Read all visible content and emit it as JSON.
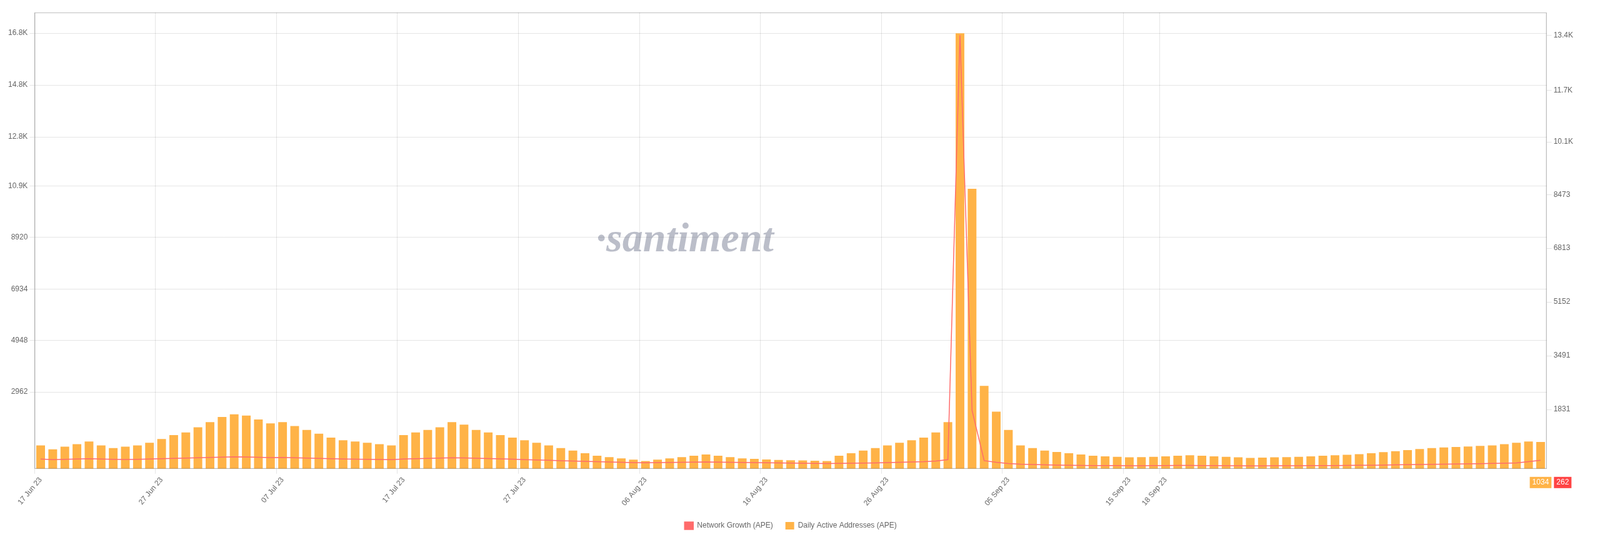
{
  "chart_data": {
    "type": "bar",
    "categories": [
      "17 Jun 23",
      null,
      null,
      null,
      null,
      null,
      null,
      null,
      null,
      null,
      "27 Jun 23",
      null,
      null,
      null,
      null,
      null,
      null,
      null,
      null,
      null,
      "07 Jul 23",
      null,
      null,
      null,
      null,
      null,
      null,
      null,
      null,
      null,
      "17 Jul 23",
      null,
      null,
      null,
      null,
      null,
      null,
      null,
      null,
      null,
      "27 Jul 23",
      null,
      null,
      null,
      null,
      null,
      null,
      null,
      null,
      null,
      "06 Aug 23",
      null,
      null,
      null,
      null,
      null,
      null,
      null,
      null,
      null,
      "16 Aug 23",
      null,
      null,
      null,
      null,
      null,
      null,
      null,
      null,
      null,
      "26 Aug 23",
      null,
      null,
      null,
      null,
      null,
      null,
      null,
      null,
      null,
      "05 Sep 23",
      null,
      null,
      null,
      null,
      null,
      null,
      null,
      null,
      null,
      "15 Sep 23",
      null,
      null,
      "18 Sep 23",
      null,
      null,
      null,
      null,
      null,
      null,
      null,
      null,
      null,
      null,
      null,
      null,
      null,
      null,
      null,
      null,
      null,
      null,
      null,
      null,
      null,
      null,
      null,
      null,
      null,
      null,
      null,
      null,
      null,
      null,
      null
    ],
    "series": [
      {
        "name": "Daily Active Addresses (APE)",
        "type": "bar",
        "color": "#FFB347",
        "values": [
          900,
          750,
          850,
          950,
          1050,
          900,
          800,
          850,
          900,
          1000,
          1150,
          1300,
          1400,
          1600,
          1800,
          2000,
          2100,
          2050,
          1900,
          1750,
          1800,
          1650,
          1500,
          1350,
          1200,
          1100,
          1050,
          1000,
          950,
          900,
          1300,
          1400,
          1500,
          1600,
          1800,
          1700,
          1500,
          1400,
          1300,
          1200,
          1100,
          1000,
          900,
          800,
          700,
          600,
          500,
          450,
          400,
          350,
          300,
          350,
          400,
          450,
          500,
          550,
          500,
          450,
          400,
          380,
          360,
          340,
          330,
          320,
          310,
          300,
          500,
          600,
          700,
          800,
          900,
          1000,
          1100,
          1200,
          1400,
          1800,
          16800,
          10800,
          3200,
          2200,
          1500,
          900,
          800,
          700,
          650,
          600,
          550,
          500,
          480,
          460,
          440,
          450,
          460,
          480,
          500,
          520,
          500,
          480,
          460,
          440,
          420,
          430,
          440,
          450,
          460,
          480,
          500,
          520,
          540,
          560,
          600,
          640,
          680,
          720,
          760,
          800,
          820,
          840,
          860,
          880,
          900,
          950,
          1000,
          1050,
          1034
        ]
      },
      {
        "name": "Network Growth (APE)",
        "type": "line",
        "color": "#FF6B6B",
        "axis": "y2",
        "values": [
          300,
          280,
          290,
          300,
          310,
          300,
          290,
          285,
          290,
          300,
          310,
          320,
          330,
          340,
          350,
          360,
          370,
          365,
          355,
          345,
          350,
          340,
          330,
          320,
          310,
          300,
          295,
          290,
          285,
          280,
          300,
          310,
          320,
          330,
          340,
          335,
          325,
          315,
          305,
          295,
          280,
          270,
          260,
          250,
          240,
          230,
          220,
          210,
          200,
          190,
          185,
          190,
          195,
          200,
          205,
          210,
          205,
          200,
          195,
          190,
          185,
          180,
          175,
          170,
          165,
          160,
          165,
          170,
          175,
          180,
          190,
          200,
          210,
          220,
          240,
          280,
          13400,
          1800,
          250,
          200,
          160,
          140,
          130,
          120,
          115,
          110,
          105,
          100,
          98,
          96,
          94,
          95,
          97,
          99,
          101,
          103,
          100,
          97,
          94,
          91,
          88,
          89,
          91,
          92,
          94,
          96,
          98,
          100,
          103,
          106,
          110,
          115,
          120,
          126,
          132,
          138,
          142,
          147,
          152,
          158,
          165,
          172,
          180,
          220,
          262
        ]
      }
    ],
    "ylim": [
      0,
      17600
    ],
    "yticks": [
      2962,
      4948,
      6934,
      8920,
      {
        "value": 10900,
        "label": "10.9K"
      },
      {
        "value": 12800,
        "label": "12.8K"
      },
      {
        "value": 14800,
        "label": "14.8K"
      },
      {
        "value": 16800,
        "label": "16.8K"
      }
    ],
    "y2lim": [
      0,
      14100
    ],
    "y2ticks": [
      1831,
      3491,
      5152,
      6813,
      8473,
      {
        "value": 10100,
        "label": "10.1K"
      },
      {
        "value": 11700,
        "label": "11.7K"
      },
      {
        "value": 13400,
        "label": "13.4K"
      }
    ],
    "grid": true,
    "legend": "bottom",
    "annotations": [
      {
        "text": "·santiment"
      },
      {
        "text": "1034",
        "color": "#FFB347"
      },
      {
        "text": "262",
        "color": "#FF4444"
      }
    ]
  }
}
